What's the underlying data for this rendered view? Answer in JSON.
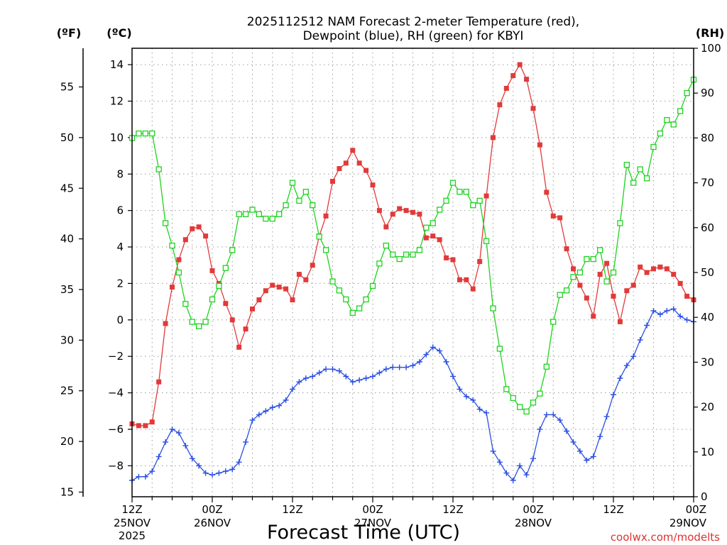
{
  "chart_data": {
    "type": "line",
    "title_line1": "2025112512 NAM Forecast 2-meter Temperature (red),",
    "title_line2": "Dewpoint (blue), RH (green) for KBYI",
    "xlabel": "Forecast Time (UTC)",
    "credit": "coolwx.com/modelts",
    "unit_left_f": "(ºF)",
    "unit_left_c": "(ºC)",
    "unit_right": "(RH)",
    "x_range_hours": [
      0,
      84
    ],
    "ylim_c": [
      -9.7,
      14.9
    ],
    "ylim_rh": [
      0,
      100
    ],
    "c_ticks": [
      -8,
      -6,
      -4,
      -2,
      0,
      2,
      4,
      6,
      8,
      10,
      12,
      14
    ],
    "c_tick_labels": [
      "−8",
      "−6",
      "−4",
      "−2",
      "0",
      "2",
      "4",
      "6",
      "8",
      "10",
      "12",
      "14"
    ],
    "f_ticks": [
      15,
      20,
      25,
      30,
      35,
      40,
      45,
      50,
      55
    ],
    "rh_ticks": [
      0,
      10,
      20,
      30,
      40,
      50,
      60,
      70,
      80,
      90,
      100
    ],
    "x_ticks": [
      {
        "hour": 0,
        "l1": "12Z",
        "l2": "25NOV",
        "l3": "2025"
      },
      {
        "hour": 12,
        "l1": "00Z",
        "l2": "26NOV",
        "l3": ""
      },
      {
        "hour": 24,
        "l1": "12Z",
        "l2": "",
        "l3": ""
      },
      {
        "hour": 36,
        "l1": "00Z",
        "l2": "27NOV",
        "l3": ""
      },
      {
        "hour": 48,
        "l1": "12Z",
        "l2": "",
        "l3": ""
      },
      {
        "hour": 60,
        "l1": "00Z",
        "l2": "28NOV",
        "l3": ""
      },
      {
        "hour": 72,
        "l1": "12Z",
        "l2": "",
        "l3": ""
      },
      {
        "hour": 84,
        "l1": "00Z",
        "l2": "29NOV",
        "l3": ""
      }
    ],
    "grid": true,
    "series": [
      {
        "name": "Temperature",
        "axis": "celsius",
        "color": "#e23a3a",
        "marker": "square-filled",
        "hours": [
          0,
          1,
          2,
          3,
          4,
          5,
          6,
          7,
          8,
          9,
          10,
          11,
          12,
          13,
          14,
          15,
          16,
          17,
          18,
          19,
          20,
          21,
          22,
          23,
          24,
          25,
          26,
          27,
          28,
          29,
          30,
          31,
          32,
          33,
          34,
          35,
          36,
          37,
          38,
          39,
          40,
          41,
          42,
          43,
          44,
          45,
          46,
          47,
          48,
          49,
          50,
          51,
          52,
          53,
          54,
          55,
          56,
          57,
          58,
          59,
          60,
          61,
          62,
          63,
          64,
          65,
          66,
          67,
          68,
          69,
          70,
          71,
          72,
          73,
          74,
          75,
          76,
          77,
          78,
          79,
          80,
          81,
          82,
          83,
          84
        ],
        "values": [
          -5.7,
          -5.8,
          -5.8,
          -5.6,
          -3.4,
          -0.2,
          1.8,
          3.3,
          4.4,
          5.0,
          5.1,
          4.6,
          2.7,
          2.0,
          0.9,
          0.0,
          -1.5,
          -0.5,
          0.6,
          1.1,
          1.6,
          1.9,
          1.8,
          1.7,
          1.1,
          2.5,
          2.2,
          3.0,
          4.6,
          5.7,
          7.6,
          8.3,
          8.6,
          9.3,
          8.6,
          8.2,
          7.4,
          6.0,
          5.1,
          5.8,
          6.1,
          6.0,
          5.9,
          5.8,
          4.5,
          4.6,
          4.4,
          3.4,
          3.3,
          2.2,
          2.2,
          1.7,
          3.2,
          6.8,
          10.0,
          11.8,
          12.7,
          13.4,
          14.0,
          13.2,
          11.6,
          9.6,
          7.0,
          5.7,
          5.6,
          3.9,
          2.8,
          1.9,
          1.2,
          0.2,
          2.5,
          3.1,
          1.3,
          -0.1,
          1.6,
          1.9,
          2.9,
          2.6,
          2.8,
          2.9,
          2.8,
          2.5,
          2.0,
          1.3,
          1.1
        ]
      },
      {
        "name": "Dewpoint",
        "axis": "celsius",
        "color": "#2a4fe0",
        "marker": "plus",
        "hours": [
          0,
          1,
          2,
          3,
          4,
          5,
          6,
          7,
          8,
          9,
          10,
          11,
          12,
          13,
          14,
          15,
          16,
          17,
          18,
          19,
          20,
          21,
          22,
          23,
          24,
          25,
          26,
          27,
          28,
          29,
          30,
          31,
          32,
          33,
          34,
          35,
          36,
          37,
          38,
          39,
          40,
          41,
          42,
          43,
          44,
          45,
          46,
          47,
          48,
          49,
          50,
          51,
          52,
          53,
          54,
          55,
          56,
          57,
          58,
          59,
          60,
          61,
          62,
          63,
          64,
          65,
          66,
          67,
          68,
          69,
          70,
          71,
          72,
          73,
          74,
          75,
          76,
          77,
          78,
          79,
          80,
          81,
          82,
          83,
          84
        ],
        "values": [
          -8.8,
          -8.6,
          -8.6,
          -8.3,
          -7.5,
          -6.7,
          -6.0,
          -6.2,
          -6.9,
          -7.6,
          -8.0,
          -8.4,
          -8.5,
          -8.4,
          -8.3,
          -8.2,
          -7.8,
          -6.7,
          -5.5,
          -5.2,
          -5.0,
          -4.8,
          -4.7,
          -4.4,
          -3.8,
          -3.4,
          -3.2,
          -3.1,
          -2.9,
          -2.7,
          -2.7,
          -2.8,
          -3.1,
          -3.4,
          -3.3,
          -3.2,
          -3.1,
          -2.9,
          -2.7,
          -2.6,
          -2.6,
          -2.6,
          -2.5,
          -2.3,
          -1.9,
          -1.5,
          -1.7,
          -2.3,
          -3.1,
          -3.8,
          -4.2,
          -4.4,
          -4.9,
          -5.1,
          -7.2,
          -7.8,
          -8.4,
          -8.8,
          -8.0,
          -8.5,
          -7.6,
          -6.0,
          -5.2,
          -5.2,
          -5.5,
          -6.1,
          -6.7,
          -7.2,
          -7.7,
          -7.5,
          -6.4,
          -5.3,
          -4.1,
          -3.2,
          -2.5,
          -2.0,
          -1.1,
          -0.3,
          0.5,
          0.3,
          0.5,
          0.6,
          0.2,
          0.0,
          -0.1
        ]
      },
      {
        "name": "Relative Humidity",
        "axis": "rh",
        "color": "#1fd21f",
        "marker": "square-open",
        "hours": [
          0,
          1,
          2,
          3,
          4,
          5,
          6,
          7,
          8,
          9,
          10,
          11,
          12,
          13,
          14,
          15,
          16,
          17,
          18,
          19,
          20,
          21,
          22,
          23,
          24,
          25,
          26,
          27,
          28,
          29,
          30,
          31,
          32,
          33,
          34,
          35,
          36,
          37,
          38,
          39,
          40,
          41,
          42,
          43,
          44,
          45,
          46,
          47,
          48,
          49,
          50,
          51,
          52,
          53,
          54,
          55,
          56,
          57,
          58,
          59,
          60,
          61,
          62,
          63,
          64,
          65,
          66,
          67,
          68,
          69,
          70,
          71,
          72,
          73,
          74,
          75,
          76,
          77,
          78,
          79,
          80,
          81,
          82,
          83,
          84
        ],
        "values": [
          80,
          81,
          81,
          81,
          73,
          61,
          56,
          50,
          43,
          39,
          38,
          39,
          44,
          47,
          51,
          55,
          63,
          63,
          64,
          63,
          62,
          62,
          63,
          65,
          70,
          66,
          68,
          65,
          58,
          55,
          48,
          46,
          44,
          41,
          42,
          44,
          47,
          52,
          56,
          54,
          53,
          54,
          54,
          55,
          60,
          61,
          64,
          66,
          70,
          68,
          68,
          65,
          66,
          57,
          42,
          33,
          24,
          22,
          20,
          19,
          21,
          23,
          29,
          39,
          45,
          46,
          49,
          50,
          53,
          53,
          55,
          48,
          50,
          61,
          74,
          70,
          73,
          71,
          78,
          81,
          84,
          83,
          86,
          90,
          93
        ]
      }
    ]
  }
}
